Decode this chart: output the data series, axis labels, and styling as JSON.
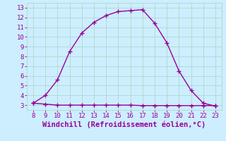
{
  "x": [
    8,
    9,
    10,
    11,
    12,
    13,
    14,
    15,
    16,
    17,
    18,
    19,
    20,
    21,
    22,
    23
  ],
  "y_temp": [
    3.2,
    4.0,
    5.6,
    8.5,
    10.4,
    11.5,
    12.2,
    12.6,
    12.7,
    12.8,
    11.4,
    9.4,
    6.5,
    4.5,
    3.2,
    2.9
  ],
  "y_wind": [
    3.2,
    3.1,
    3.0,
    3.0,
    3.0,
    3.0,
    3.0,
    3.0,
    3.0,
    2.95,
    2.95,
    2.95,
    2.95,
    2.95,
    2.95,
    2.95
  ],
  "line_color": "#990099",
  "bg_color": "#cceeff",
  "grid_color": "#b0d8cc",
  "xlabel": "Windchill (Refroidissement éolien,°C)",
  "xlim": [
    7.5,
    23.5
  ],
  "ylim": [
    2.5,
    13.5
  ],
  "yticks": [
    3,
    4,
    5,
    6,
    7,
    8,
    9,
    10,
    11,
    12,
    13
  ],
  "xticks": [
    8,
    9,
    10,
    11,
    12,
    13,
    14,
    15,
    16,
    17,
    18,
    19,
    20,
    21,
    22,
    23
  ],
  "marker": "+",
  "markersize": 4,
  "markeredgewidth": 1.0,
  "linewidth": 1.0,
  "xlabel_fontsize": 7.5,
  "tick_fontsize": 6.5
}
